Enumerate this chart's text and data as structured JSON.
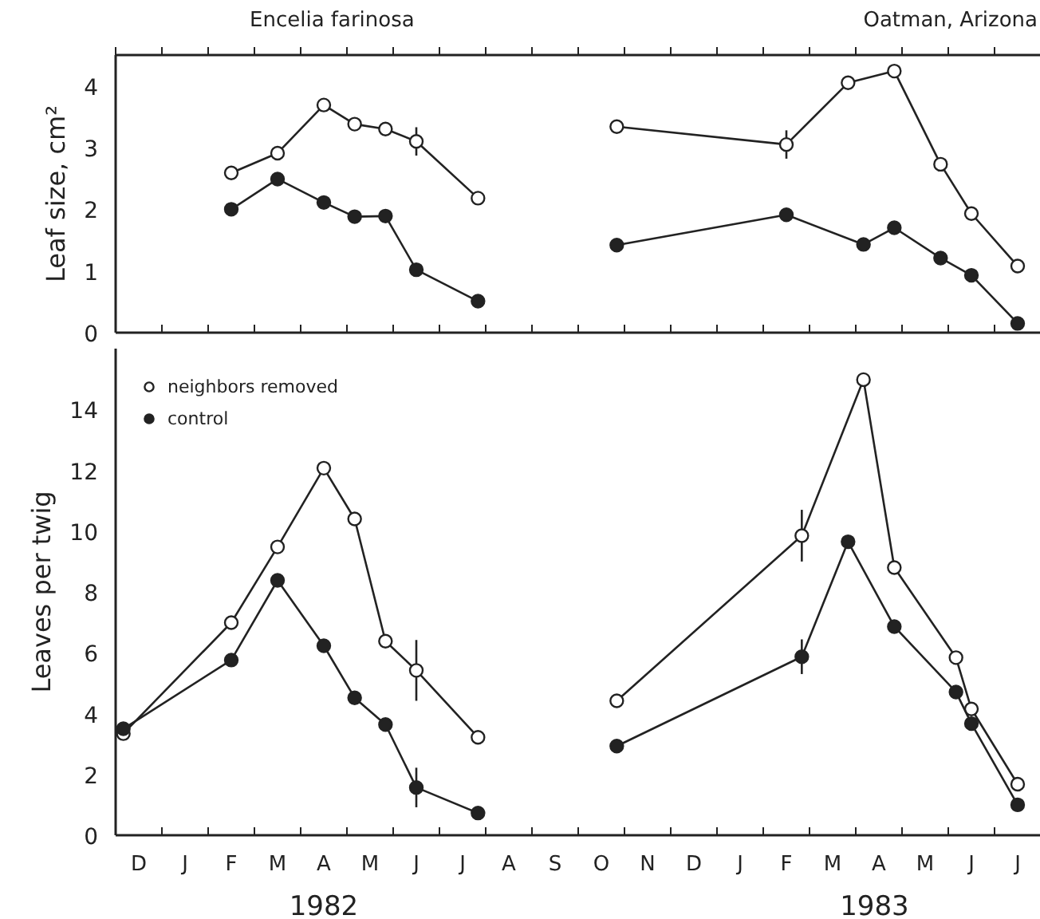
{
  "chart_data": [
    {
      "type": "line",
      "title": "Encelia farinosa",
      "subtitle": "Oatman, Arizona",
      "ylabel": "Leaf size, cm²",
      "ylim": [
        0,
        4.5
      ],
      "yticks": [
        0,
        1,
        2,
        3,
        4
      ],
      "categories": [
        null,
        null,
        null,
        null,
        null,
        null,
        null,
        null,
        null,
        null,
        null,
        null,
        null,
        null,
        null,
        null,
        null,
        null,
        null,
        null,
        null,
        null,
        null,
        null,
        null,
        null,
        null,
        null,
        null,
        null,
        null,
        null,
        null,
        null,
        null,
        null,
        null,
        null,
        null,
        null,
        null,
        null,
        null,
        null,
        null,
        null,
        null,
        null,
        null,
        null,
        null,
        null,
        null,
        null,
        null,
        null,
        null,
        null,
        null,
        null
      ],
      "tick_labels": "y",
      "grid": false,
      "legend": false,
      "marker": "circle",
      "line_style": "solid",
      "series": [
        {
          "color": "#ffffff",
          "values": [
            null,
            null,
            null,
            null,
            null,
            null,
            null,
            2.59,
            null,
            null,
            2.91,
            null,
            null,
            3.69,
            null,
            3.38,
            null,
            3.3,
            null,
            3.1,
            null,
            null,
            null,
            2.18,
            null,
            null,
            null,
            null,
            null,
            null,
            null,
            null,
            null,
            null,
            null,
            null,
            null,
            null,
            null,
            null,
            null,
            null,
            null,
            null,
            null,
            null,
            null,
            null,
            null,
            null,
            null,
            null,
            null,
            null,
            null,
            null,
            null,
            null,
            null,
            null
          ],
          "errors": [
            null,
            null,
            null,
            null,
            null,
            null,
            null,
            null,
            null,
            null,
            null,
            null,
            null,
            null,
            null,
            null,
            null,
            null,
            null,
            0.23,
            null,
            null,
            null,
            null,
            null,
            null,
            null,
            null,
            null,
            null,
            null,
            null,
            null,
            null,
            null,
            null,
            null,
            null,
            null,
            null,
            null,
            null,
            null,
            null,
            null,
            null,
            null,
            null,
            null,
            null,
            null,
            null,
            null,
            null,
            null,
            null,
            null,
            null,
            null,
            null
          ]
        },
        {
          "color": "#ffffff",
          "values": [
            null,
            null,
            null,
            null,
            null,
            null,
            null,
            null,
            null,
            null,
            null,
            null,
            null,
            null,
            null,
            null,
            null,
            null,
            null,
            null,
            null,
            null,
            null,
            null,
            null,
            null,
            null,
            null,
            null,
            null,
            null,
            null,
            3.34,
            null,
            null,
            null,
            null,
            null,
            null,
            null,
            null,
            null,
            null,
            3.05,
            null,
            null,
            null,
            4.05,
            null,
            null,
            4.24,
            null,
            null,
            2.73,
            null,
            1.93,
            null,
            null,
            1.08,
            null
          ],
          "errors": [
            null,
            null,
            null,
            null,
            null,
            null,
            null,
            null,
            null,
            null,
            null,
            null,
            null,
            null,
            null,
            null,
            null,
            null,
            null,
            null,
            null,
            null,
            null,
            null,
            null,
            null,
            null,
            null,
            null,
            null,
            null,
            null,
            null,
            null,
            null,
            null,
            null,
            null,
            null,
            null,
            null,
            null,
            null,
            0.23,
            null,
            null,
            null,
            null,
            null,
            null,
            null,
            null,
            null,
            null,
            null,
            null,
            null,
            null,
            null,
            null
          ]
        },
        {
          "color": "#222222",
          "values": [
            null,
            null,
            null,
            null,
            null,
            null,
            null,
            2.0,
            null,
            null,
            2.49,
            null,
            null,
            2.11,
            null,
            1.88,
            null,
            1.89,
            null,
            1.02,
            null,
            null,
            null,
            0.51,
            null,
            null,
            null,
            null,
            null,
            null,
            null,
            null,
            null,
            null,
            null,
            null,
            null,
            null,
            null,
            null,
            null,
            null,
            null,
            null,
            null,
            null,
            null,
            null,
            null,
            null,
            null,
            null,
            null,
            null,
            null,
            null,
            null,
            null,
            null,
            null
          ],
          "errors": [
            null,
            null,
            null,
            null,
            null,
            null,
            null,
            null,
            null,
            null,
            null,
            null,
            null,
            null,
            null,
            null,
            null,
            null,
            null,
            0.1,
            null,
            null,
            null,
            null,
            null,
            null,
            null,
            null,
            null,
            null,
            null,
            null,
            null,
            null,
            null,
            null,
            null,
            null,
            null,
            null,
            null,
            null,
            null,
            null,
            null,
            null,
            null,
            null,
            null,
            null,
            null,
            null,
            null,
            null,
            null,
            null,
            null,
            null,
            null,
            null
          ]
        },
        {
          "color": "#222222",
          "values": [
            null,
            null,
            null,
            null,
            null,
            null,
            null,
            null,
            null,
            null,
            null,
            null,
            null,
            null,
            null,
            null,
            null,
            null,
            null,
            null,
            null,
            null,
            null,
            null,
            null,
            null,
            null,
            null,
            null,
            null,
            null,
            null,
            1.42,
            null,
            null,
            null,
            null,
            null,
            null,
            null,
            null,
            null,
            null,
            1.91,
            null,
            null,
            null,
            null,
            1.43,
            null,
            1.7,
            null,
            null,
            1.21,
            null,
            0.93,
            null,
            null,
            0.15,
            null
          ]
        }
      ]
    },
    {
      "type": "line",
      "ylabel": "Leaves per twig",
      "ylim": [
        0,
        16
      ],
      "yticks": [
        0,
        2,
        4,
        6,
        8,
        10,
        12,
        14
      ],
      "categories": [
        null,
        "D",
        null,
        null,
        "J",
        null,
        null,
        "F",
        null,
        null,
        "M",
        null,
        null,
        "A",
        null,
        null,
        "M",
        null,
        null,
        "J",
        null,
        null,
        "J",
        null,
        null,
        "A",
        null,
        null,
        "S",
        null,
        null,
        "O",
        null,
        null,
        "N",
        null,
        null,
        "D",
        null,
        null,
        "J",
        null,
        null,
        "F",
        null,
        null,
        "M",
        null,
        null,
        "A",
        null,
        null,
        "M",
        null,
        null,
        "J",
        null,
        null,
        "J",
        null
      ],
      "annotations": [
        "1982",
        "1983"
      ],
      "grid": false,
      "legend": "top left",
      "marker": "circle",
      "line_style": "solid",
      "series": [
        {
          "name": "neighbors removed",
          "color": "#ffffff",
          "values": [
            3.34,
            null,
            null,
            null,
            null,
            null,
            null,
            6.99,
            null,
            null,
            9.48,
            null,
            null,
            12.07,
            null,
            10.4,
            null,
            6.38,
            null,
            5.42,
            null,
            null,
            null,
            3.22,
            null,
            null,
            null,
            null,
            null,
            null,
            null,
            null,
            null,
            null,
            null,
            null,
            null,
            null,
            null,
            null,
            null,
            null,
            null,
            null,
            null,
            null,
            null,
            null,
            null,
            null,
            null,
            null,
            null,
            null,
            null,
            null,
            null,
            null,
            null,
            null
          ],
          "errors": [
            null,
            null,
            null,
            null,
            null,
            null,
            null,
            null,
            null,
            null,
            null,
            null,
            null,
            null,
            null,
            null,
            null,
            null,
            null,
            1.0,
            null,
            null,
            null,
            null,
            null,
            null,
            null,
            null,
            null,
            null,
            null,
            null,
            null,
            null,
            null,
            null,
            null,
            null,
            null,
            null,
            null,
            null,
            null,
            null,
            null,
            null,
            null,
            null,
            null,
            null,
            null,
            null,
            null,
            null,
            null,
            null,
            null,
            null,
            null,
            null
          ]
        },
        {
          "color": "#ffffff",
          "values": [
            null,
            null,
            null,
            null,
            null,
            null,
            null,
            null,
            null,
            null,
            null,
            null,
            null,
            null,
            null,
            null,
            null,
            null,
            null,
            null,
            null,
            null,
            null,
            null,
            null,
            null,
            null,
            null,
            null,
            null,
            null,
            null,
            4.42,
            null,
            null,
            null,
            null,
            null,
            null,
            null,
            null,
            null,
            null,
            null,
            9.85,
            null,
            null,
            null,
            14.98,
            null,
            8.8,
            null,
            null,
            null,
            5.84,
            4.15,
            null,
            null,
            1.68,
            null
          ],
          "errors": [
            null,
            null,
            null,
            null,
            null,
            null,
            null,
            null,
            null,
            null,
            null,
            null,
            null,
            null,
            null,
            null,
            null,
            null,
            null,
            null,
            null,
            null,
            null,
            null,
            null,
            null,
            null,
            null,
            null,
            null,
            null,
            null,
            null,
            null,
            null,
            null,
            null,
            null,
            null,
            null,
            null,
            null,
            null,
            null,
            0.85,
            null,
            null,
            null,
            null,
            null,
            null,
            null,
            null,
            null,
            null,
            null,
            null,
            null,
            null,
            null
          ]
        },
        {
          "name": "control",
          "color": "#222222",
          "values": [
            3.5,
            null,
            null,
            null,
            null,
            null,
            null,
            5.76,
            null,
            null,
            8.38,
            null,
            null,
            6.23,
            null,
            4.52,
            null,
            3.64,
            null,
            1.57,
            null,
            null,
            null,
            0.73,
            null,
            null,
            null,
            null,
            null,
            null,
            null,
            null,
            null,
            null,
            null,
            null,
            null,
            null,
            null,
            null,
            null,
            null,
            null,
            null,
            null,
            null,
            null,
            null,
            null,
            null,
            null,
            null,
            null,
            null,
            null,
            null,
            null,
            null,
            null,
            null
          ],
          "errors": [
            null,
            null,
            null,
            null,
            null,
            null,
            null,
            null,
            null,
            null,
            null,
            null,
            null,
            null,
            null,
            null,
            null,
            null,
            null,
            0.65,
            null,
            null,
            null,
            null,
            null,
            null,
            null,
            null,
            null,
            null,
            null,
            null,
            null,
            null,
            null,
            null,
            null,
            null,
            null,
            null,
            null,
            null,
            null,
            null,
            null,
            null,
            null,
            null,
            null,
            null,
            null,
            null,
            null,
            null,
            null,
            null,
            null,
            null,
            null,
            null
          ]
        },
        {
          "color": "#222222",
          "values": [
            null,
            null,
            null,
            null,
            null,
            null,
            null,
            null,
            null,
            null,
            null,
            null,
            null,
            null,
            null,
            null,
            null,
            null,
            null,
            null,
            null,
            null,
            null,
            null,
            null,
            null,
            null,
            null,
            null,
            null,
            null,
            null,
            2.93,
            null,
            null,
            null,
            null,
            null,
            null,
            null,
            null,
            null,
            null,
            null,
            5.87,
            null,
            null,
            9.65,
            null,
            null,
            6.86,
            null,
            null,
            null,
            4.71,
            3.67,
            null,
            null,
            1.0,
            null
          ],
          "errors": [
            null,
            null,
            null,
            null,
            null,
            null,
            null,
            null,
            null,
            null,
            null,
            null,
            null,
            null,
            null,
            null,
            null,
            null,
            null,
            null,
            null,
            null,
            null,
            null,
            null,
            null,
            null,
            null,
            null,
            null,
            null,
            null,
            null,
            null,
            null,
            null,
            null,
            null,
            null,
            null,
            null,
            null,
            null,
            null,
            0.57,
            null,
            null,
            null,
            null,
            null,
            null,
            null,
            null,
            null,
            null,
            null,
            null,
            null,
            null,
            null
          ]
        }
      ]
    }
  ]
}
